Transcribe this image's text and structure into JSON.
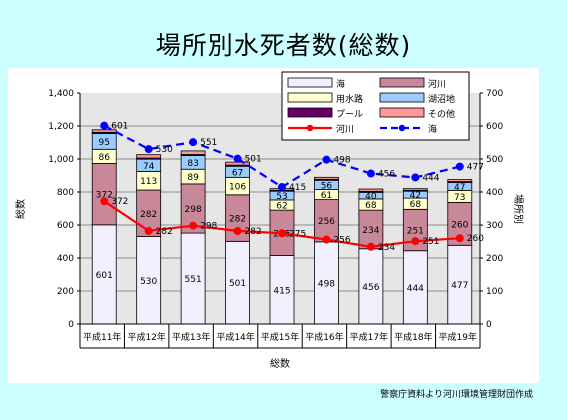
{
  "title": "場所別水死者数(総数)",
  "footnote": "警察庁資料より河川環境管理財団作成",
  "chart_data": {
    "type": "bar",
    "stacked": true,
    "categories": [
      "平成11年",
      "平成12年",
      "平成13年",
      "平成14年",
      "平成15年",
      "平成16年",
      "平成17年",
      "平成18年",
      "平成19年"
    ],
    "xlabel": "総数",
    "ylabel_left": "総数",
    "ylabel_right": "場所別",
    "ylim_left": [
      0,
      1400
    ],
    "ylim_right": [
      0,
      700
    ],
    "yticks_left": [
      "0",
      "200",
      "400",
      "600",
      "800",
      "1,000",
      "1,200",
      "1,400"
    ],
    "yticks_right": [
      "0",
      "100",
      "200",
      "300",
      "400",
      "500",
      "600",
      "700"
    ],
    "series": [
      {
        "name": "海",
        "color": "#f2f0ff",
        "values": [
          601,
          530,
          551,
          501,
          415,
          498,
          456,
          444,
          477
        ]
      },
      {
        "name": "河川",
        "color": "#c9889a",
        "values": [
          372,
          282,
          298,
          282,
          275,
          256,
          234,
          251,
          260
        ]
      },
      {
        "name": "用水路",
        "color": "#ffffcc",
        "values": [
          86,
          113,
          89,
          106,
          62,
          61,
          68,
          68,
          73
        ]
      },
      {
        "name": "湖沼地",
        "color": "#99ccff",
        "values": [
          95,
          74,
          83,
          67,
          53,
          56,
          40,
          42,
          47
        ]
      },
      {
        "name": "プール",
        "color": "#660066",
        "values": [
          8,
          7,
          6,
          7,
          5,
          6,
          6,
          5,
          6
        ]
      },
      {
        "name": "その他",
        "color": "#ff9999",
        "values": [
          15,
          20,
          22,
          18,
          10,
          12,
          14,
          10,
          12
        ]
      }
    ],
    "lines": [
      {
        "name": "河川",
        "axis": "right",
        "color": "#ff0000",
        "style": "solid",
        "values": [
          372,
          282,
          298,
          282,
          275,
          256,
          234,
          251,
          260
        ]
      },
      {
        "name": "海",
        "axis": "right",
        "color": "#0000ff",
        "style": "dashed",
        "values": [
          601,
          530,
          551,
          501,
          415,
          498,
          456,
          444,
          477
        ]
      }
    ],
    "legend_position": "top",
    "grid": true
  }
}
